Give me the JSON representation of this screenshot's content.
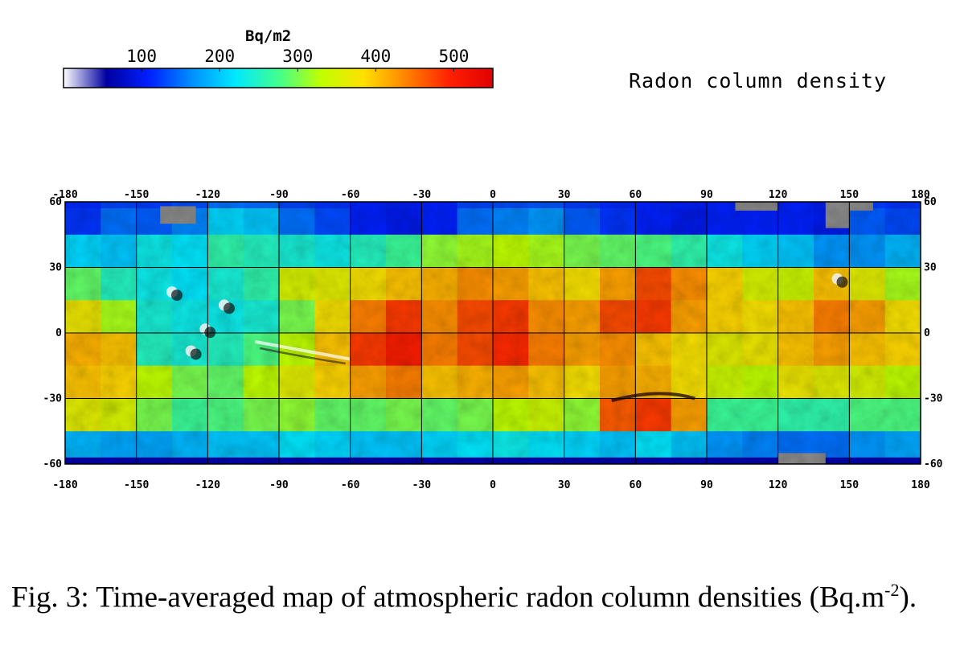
{
  "title": "Radon column density",
  "colorbar": {
    "unit": "Bq/m2",
    "ticks": [
      "100",
      "200",
      "300",
      "400",
      "500"
    ],
    "tick_values": [
      100,
      200,
      300,
      400,
      500
    ],
    "range": [
      0,
      550
    ],
    "stops": [
      "#ffffff",
      "#0000a0",
      "#0020ff",
      "#0090ff",
      "#00e8ff",
      "#40ff90",
      "#c0ff00",
      "#ffe000",
      "#ff8000",
      "#ff2000",
      "#e00000"
    ]
  },
  "map": {
    "lon_ticks": [
      "-180",
      "-150",
      "-120",
      "-90",
      "-60",
      "-30",
      "0",
      "30",
      "60",
      "90",
      "120",
      "150",
      "180"
    ],
    "lon_values": [
      -180,
      -150,
      -120,
      -90,
      -60,
      -30,
      0,
      30,
      60,
      90,
      120,
      150,
      180
    ],
    "lat_ticks": [
      "60",
      "30",
      "0",
      "-30",
      "-60"
    ],
    "lat_values": [
      60,
      30,
      0,
      -30,
      -60
    ],
    "lat_range": [
      -60,
      60
    ],
    "lon_range": [
      -180,
      180
    ],
    "grid": true,
    "lat_bands": [
      {
        "lat": [
          45,
          60
        ],
        "values": [
          120,
          150,
          140,
          160,
          210,
          200,
          150,
          130,
          110,
          100,
          110,
          150,
          160,
          170,
          140,
          120,
          110,
          100,
          110,
          110,
          110,
          100,
          140,
          130
        ]
      },
      {
        "lat": [
          30,
          45
        ],
        "values": [
          210,
          200,
          230,
          220,
          260,
          250,
          240,
          230,
          250,
          270,
          310,
          320,
          330,
          320,
          300,
          290,
          280,
          260,
          230,
          210,
          200,
          170,
          170,
          190
        ]
      },
      {
        "lat": [
          15,
          30
        ],
        "values": [
          290,
          250,
          230,
          220,
          240,
          260,
          350,
          360,
          380,
          400,
          410,
          430,
          420,
          400,
          380,
          420,
          470,
          430,
          390,
          350,
          340,
          400,
          360,
          320
        ]
      },
      {
        "lat": [
          0,
          15
        ],
        "values": [
          370,
          320,
          240,
          230,
          230,
          240,
          300,
          380,
          440,
          480,
          430,
          470,
          480,
          430,
          420,
          470,
          480,
          420,
          390,
          380,
          400,
          440,
          420,
          380
        ]
      },
      {
        "lat": [
          -15,
          0
        ],
        "values": [
          410,
          400,
          250,
          240,
          250,
          280,
          330,
          400,
          480,
          500,
          440,
          470,
          490,
          440,
          420,
          430,
          400,
          380,
          360,
          370,
          400,
          420,
          400,
          390
        ]
      },
      {
        "lat": [
          -30,
          -15
        ],
        "values": [
          400,
          390,
          330,
          300,
          290,
          330,
          360,
          390,
          420,
          440,
          400,
          410,
          420,
          400,
          380,
          420,
          410,
          380,
          340,
          330,
          370,
          360,
          350,
          330
        ]
      },
      {
        "lat": [
          -45,
          -30
        ],
        "values": [
          360,
          350,
          300,
          270,
          280,
          300,
          310,
          290,
          290,
          300,
          290,
          300,
          330,
          340,
          310,
          460,
          480,
          420,
          270,
          270,
          260,
          260,
          280,
          280
        ]
      },
      {
        "lat": [
          -60,
          -45
        ],
        "values": [
          190,
          180,
          180,
          190,
          200,
          200,
          220,
          210,
          200,
          200,
          210,
          220,
          230,
          220,
          210,
          200,
          220,
          200,
          170,
          160,
          150,
          150,
          170,
          180
        ]
      }
    ],
    "no_data_cells": [
      {
        "lon": [
          -140,
          -125
        ],
        "lat": [
          50,
          58
        ]
      },
      {
        "lon": [
          102,
          120
        ],
        "lat": [
          56,
          60
        ]
      },
      {
        "lon": [
          140,
          150
        ],
        "lat": [
          48,
          60
        ]
      },
      {
        "lon": [
          150,
          160
        ],
        "lat": [
          56,
          60
        ]
      },
      {
        "lon": [
          120,
          140
        ],
        "lat": [
          -60,
          -55
        ]
      }
    ],
    "volcanoes": [
      {
        "lon": -134,
        "lat": 18
      },
      {
        "lon": -112,
        "lat": 12
      },
      {
        "lon": -120,
        "lat": 1
      },
      {
        "lon": -126,
        "lat": -9
      },
      {
        "lon": 146,
        "lat": 24
      }
    ]
  },
  "caption": {
    "text": "Fig. 3: Time-averaged map of atmospheric radon column densities (Bq.m",
    "superscript": "-2",
    "suffix": ")."
  }
}
